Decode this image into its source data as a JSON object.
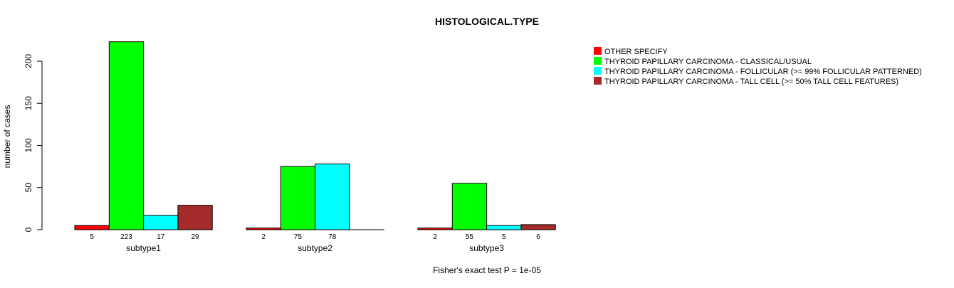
{
  "chart_data": {
    "type": "bar",
    "title": "HISTOLOGICAL.TYPE",
    "xlabel": "Fisher's exact test P = 1e-05",
    "ylabel": "number of cases",
    "ylim": [
      0,
      200
    ],
    "yticks": [
      0,
      50,
      100,
      150,
      200
    ],
    "categories": [
      "subtype1",
      "subtype2",
      "subtype3"
    ],
    "series": [
      {
        "name": "OTHER  SPECIFY",
        "color": "#ff0000",
        "values": [
          5,
          2,
          2
        ]
      },
      {
        "name": "THYROID PAPILLARY CARCINOMA - CLASSICAL/USUAL",
        "color": "#00ff00",
        "values": [
          223,
          75,
          55
        ]
      },
      {
        "name": "THYROID PAPILLARY CARCINOMA - FOLLICULAR (>= 99% FOLLICULAR PATTERNED)",
        "color": "#00ffff",
        "values": [
          17,
          78,
          5
        ]
      },
      {
        "name": "THYROID PAPILLARY CARCINOMA - TALL CELL (>= 50% TALL CELL FEATURES)",
        "color": "#a52a2a",
        "values": [
          29,
          0,
          6
        ]
      }
    ],
    "bar_labels": [
      [
        "5",
        "223",
        "17",
        "29"
      ],
      [
        "2",
        "75",
        "78",
        ""
      ],
      [
        "2",
        "55",
        "5",
        "6"
      ]
    ],
    "legend_position": "top-right",
    "grid": false
  }
}
